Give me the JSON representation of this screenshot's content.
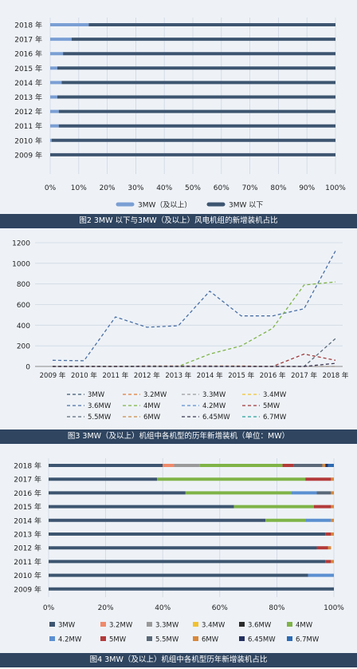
{
  "chart_data": [
    {
      "type": "bar",
      "orientation": "horizontal",
      "stacked": true,
      "caption": "图2 3MW 以下与3MW（及以上）风电机组的新增装机占比",
      "categories": [
        "2018 年",
        "2017 年",
        "2016 年",
        "2015 年",
        "2014 年",
        "2013 年",
        "2012 年",
        "2011 年",
        "2010 年",
        "2009 年"
      ],
      "xticks": [
        "0%",
        "10%",
        "20%",
        "30%",
        "40%",
        "50%",
        "60%",
        "70%",
        "80%",
        "90%",
        "100%"
      ],
      "xlim": [
        0,
        100
      ],
      "grid": true,
      "legend_position": "bottom",
      "series": [
        {
          "name": "3MW（及以上）",
          "color": "#7a9fd4",
          "values": [
            13.5,
            7.5,
            4.5,
            2.5,
            4,
            2.5,
            3,
            3,
            0.5,
            0
          ]
        },
        {
          "name": "3MW 以下",
          "color": "#3d5570",
          "values": [
            86.5,
            92.5,
            95.5,
            97.5,
            96,
            97.5,
            97,
            97,
            99.5,
            100
          ]
        }
      ]
    },
    {
      "type": "line",
      "caption": "图3 3MW（及以上）机组中各机型的历年新增装机（单位：MW）",
      "x": [
        "2009 年",
        "2010 年",
        "2011 年",
        "2012 年",
        "2013 年",
        "2014 年",
        "2015 年",
        "2016 年",
        "2017 年",
        "2018 年"
      ],
      "yticks": [
        "0",
        "200",
        "400",
        "600",
        "800",
        "1000",
        "1200"
      ],
      "ylim": [
        0,
        1200
      ],
      "grid": true,
      "legend_position": "bottom",
      "series": [
        {
          "name": "3MW",
          "color": "#3d5570",
          "values": [
            0,
            0,
            0,
            0,
            0,
            0,
            0,
            0,
            0,
            0
          ]
        },
        {
          "name": "3.2MW",
          "color": "#e07b39",
          "values": [
            0,
            0,
            0,
            5,
            5,
            5,
            5,
            0,
            0,
            0
          ]
        },
        {
          "name": "3.3MW",
          "color": "#9a9a9a",
          "values": [
            0,
            0,
            0,
            5,
            3,
            5,
            0,
            0,
            0,
            0
          ]
        },
        {
          "name": "3.4MW",
          "color": "#f2c12e",
          "values": [
            0,
            0,
            0,
            0,
            0,
            0,
            0,
            0,
            0,
            0
          ]
        },
        {
          "name": "3.6MW",
          "color": "#4a6fa5",
          "values": [
            60,
            55,
            480,
            380,
            395,
            730,
            490,
            490,
            560,
            1120
          ]
        },
        {
          "name": "4MW",
          "color": "#7fb347",
          "values": [
            0,
            0,
            0,
            0,
            0,
            120,
            200,
            370,
            790,
            820
          ]
        },
        {
          "name": "4.2MW",
          "color": "#5b8fd1",
          "values": [
            0,
            0,
            0,
            0,
            0,
            0,
            0,
            0,
            0,
            0
          ]
        },
        {
          "name": "5MW",
          "color": "#a03a3a",
          "values": [
            0,
            0,
            0,
            0,
            0,
            0,
            0,
            0,
            120,
            60
          ]
        },
        {
          "name": "5.5MW",
          "color": "#5a6878",
          "values": [
            0,
            0,
            0,
            0,
            0,
            0,
            0,
            0,
            0,
            270
          ]
        },
        {
          "name": "6MW",
          "color": "#c98a4a",
          "values": [
            0,
            0,
            0,
            0,
            0,
            0,
            0,
            0,
            0,
            0
          ]
        },
        {
          "name": "6.45MW",
          "color": "#3a3550",
          "values": [
            0,
            0,
            0,
            0,
            0,
            0,
            0,
            0,
            0,
            30
          ]
        },
        {
          "name": "6.7MW",
          "color": "#2aa198",
          "values": [
            0,
            0,
            0,
            0,
            0,
            0,
            0,
            0,
            0,
            0
          ]
        }
      ]
    },
    {
      "type": "bar",
      "orientation": "horizontal",
      "stacked": true,
      "caption": "图4 3MW（及以上）机组中各机型历年新增装机占比",
      "categories": [
        "2018 年",
        "2017 年",
        "2016 年",
        "2015 年",
        "2014 年",
        "2013 年",
        "2012 年",
        "2011 年",
        "2010 年",
        "2009 年"
      ],
      "xticks": [
        "0%",
        "20%",
        "40%",
        "60%",
        "80%",
        "100%"
      ],
      "xlim": [
        0,
        100
      ],
      "grid": true,
      "legend_position": "bottom",
      "series": [
        {
          "name": "3MW",
          "color": "#3d5570",
          "values": [
            40,
            38,
            48,
            65,
            76,
            97,
            94,
            97,
            91,
            100
          ]
        },
        {
          "name": "3.2MW",
          "color": "#f08a6a",
          "values": [
            4,
            0,
            0,
            0,
            0,
            0,
            0,
            0,
            0,
            0
          ]
        },
        {
          "name": "3.3MW",
          "color": "#9a9a9a",
          "values": [
            9,
            0,
            0,
            0,
            0,
            0,
            0,
            0,
            0,
            0
          ]
        },
        {
          "name": "3.4MW",
          "color": "#f2c12e",
          "values": [
            0,
            0,
            0,
            0,
            0,
            0,
            0,
            0,
            0,
            0
          ]
        },
        {
          "name": "3.6MW",
          "color": "#2b2b2b",
          "values": [
            0,
            0,
            0,
            0,
            0,
            0,
            0,
            0,
            0,
            0
          ]
        },
        {
          "name": "4MW",
          "color": "#7fb347",
          "values": [
            29,
            52,
            37,
            28,
            14,
            0,
            0,
            0,
            0,
            0
          ]
        },
        {
          "name": "4.2MW",
          "color": "#5b8fd1",
          "values": [
            0,
            0,
            9,
            0,
            9,
            0,
            0,
            0,
            9,
            0
          ]
        },
        {
          "name": "5MW",
          "color": "#b33a3a",
          "values": [
            4,
            9,
            0,
            6,
            0,
            2,
            4,
            2,
            0,
            0
          ]
        },
        {
          "name": "5.5MW",
          "color": "#5a6878",
          "values": [
            10,
            0,
            5,
            0,
            0,
            0,
            0,
            0,
            0,
            0
          ]
        },
        {
          "name": "6MW",
          "color": "#d9883a",
          "values": [
            1,
            1,
            1,
            1,
            1,
            1,
            1,
            1,
            0,
            0
          ]
        },
        {
          "name": "6.45MW",
          "color": "#24305e",
          "values": [
            1,
            0,
            0,
            0,
            0,
            0,
            0,
            0,
            0,
            0
          ]
        },
        {
          "name": "6.7MW",
          "color": "#2d6bb3",
          "values": [
            2,
            0,
            0,
            0,
            0,
            0,
            0,
            0,
            0,
            0
          ]
        }
      ]
    }
  ]
}
